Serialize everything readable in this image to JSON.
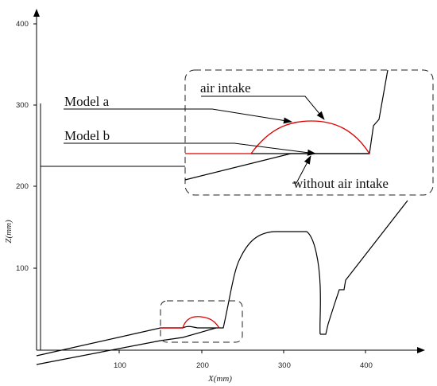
{
  "chart_data": {
    "type": "diagram",
    "xlabel": "X(mm)",
    "ylabel": "Z(mm)",
    "x_ticks": [
      "100",
      "200",
      "300",
      "400"
    ],
    "z_ticks": [
      "100",
      "200",
      "300",
      "400"
    ],
    "annotations": {
      "model_a": "Model a",
      "model_b": "Model b",
      "air_intake": "air intake",
      "without_air_intake": "without air intake"
    },
    "colors": {
      "profile": "#000000",
      "air_intake_bump": "#e00000",
      "axes": "#000000"
    }
  }
}
